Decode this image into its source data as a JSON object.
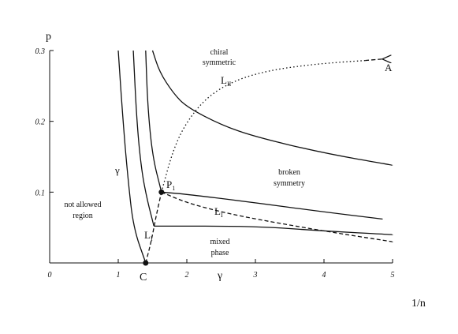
{
  "chart_data": {
    "type": "line",
    "xlabel": "1/n",
    "ylabel": "p",
    "xlim": [
      0,
      5
    ],
    "ylim": [
      0,
      0.3
    ],
    "x_ticks": [
      "0",
      "1",
      "2",
      "3",
      "4",
      "5"
    ],
    "y_ticks": [
      "0.1",
      "0.2",
      "0.3"
    ],
    "grid": false,
    "region_labels": {
      "not_allowed": [
        "not allowed",
        "region"
      ],
      "chiral": [
        "chiral",
        "symmetric"
      ],
      "broken": [
        "broken",
        "symmetry"
      ],
      "mixed": [
        "mixed",
        "phase"
      ]
    },
    "annotations": {
      "C": "C",
      "P1": "P",
      "P1_sub": "1",
      "L_I": "L",
      "L_I_sub": "I",
      "L_II": "L",
      "L_II_sub": "II",
      "L_I_lower": "L",
      "L_I_lower_sub": "I",
      "gamma_left": "γ",
      "gamma_axis": "γ",
      "A": "A"
    },
    "series": [
      {
        "style": "solid",
        "points": [
          [
            1.0,
            0.3
          ],
          [
            1.07,
            0.2
          ],
          [
            1.14,
            0.12
          ],
          [
            1.22,
            0.05
          ],
          [
            1.4,
            0.0
          ]
        ]
      },
      {
        "style": "solid",
        "points": [
          [
            1.22,
            0.3
          ],
          [
            1.27,
            0.2
          ],
          [
            1.34,
            0.13
          ],
          [
            1.42,
            0.09
          ],
          [
            1.52,
            0.052
          ]
        ]
      },
      {
        "style": "solid",
        "points": [
          [
            1.4,
            0.3
          ],
          [
            1.43,
            0.22
          ],
          [
            1.5,
            0.15
          ],
          [
            1.63,
            0.1
          ]
        ]
      },
      {
        "style": "solid",
        "points": [
          [
            1.52,
            0.052
          ],
          [
            3.0,
            0.052
          ],
          [
            4.0,
            0.045
          ],
          [
            5.0,
            0.04
          ]
        ]
      },
      {
        "style": "solid",
        "points": [
          [
            1.63,
            0.1
          ],
          [
            2.0,
            0.097
          ],
          [
            3.0,
            0.085
          ],
          [
            4.0,
            0.072
          ],
          [
            4.85,
            0.062
          ]
        ]
      },
      {
        "style": "solid",
        "points": [
          [
            1.5,
            0.3
          ],
          [
            1.6,
            0.27
          ],
          [
            1.8,
            0.24
          ],
          [
            2.0,
            0.22
          ],
          [
            2.5,
            0.195
          ],
          [
            3.0,
            0.178
          ],
          [
            4.0,
            0.155
          ],
          [
            5.0,
            0.138
          ]
        ]
      },
      {
        "style": "dashed",
        "points": [
          [
            1.4,
            0.0
          ],
          [
            1.48,
            0.03
          ],
          [
            1.55,
            0.065
          ],
          [
            1.63,
            0.1
          ]
        ]
      },
      {
        "style": "dashed",
        "points": [
          [
            1.63,
            0.1
          ],
          [
            2.0,
            0.085
          ],
          [
            2.5,
            0.072
          ],
          [
            3.0,
            0.062
          ],
          [
            4.0,
            0.045
          ],
          [
            5.0,
            0.03
          ]
        ]
      },
      {
        "style": "dotted",
        "points": [
          [
            1.63,
            0.1
          ],
          [
            1.8,
            0.16
          ],
          [
            2.0,
            0.2
          ],
          [
            2.3,
            0.235
          ],
          [
            2.7,
            0.258
          ],
          [
            3.2,
            0.272
          ],
          [
            3.8,
            0.28
          ],
          [
            4.3,
            0.284
          ],
          [
            4.6,
            0.286
          ]
        ]
      },
      {
        "style": "dashed",
        "points": [
          [
            4.6,
            0.286
          ],
          [
            4.85,
            0.288
          ]
        ]
      }
    ],
    "points": [
      {
        "name": "C",
        "x": 1.4,
        "y": 0.0
      },
      {
        "name": "P1",
        "x": 1.63,
        "y": 0.1
      }
    ]
  }
}
